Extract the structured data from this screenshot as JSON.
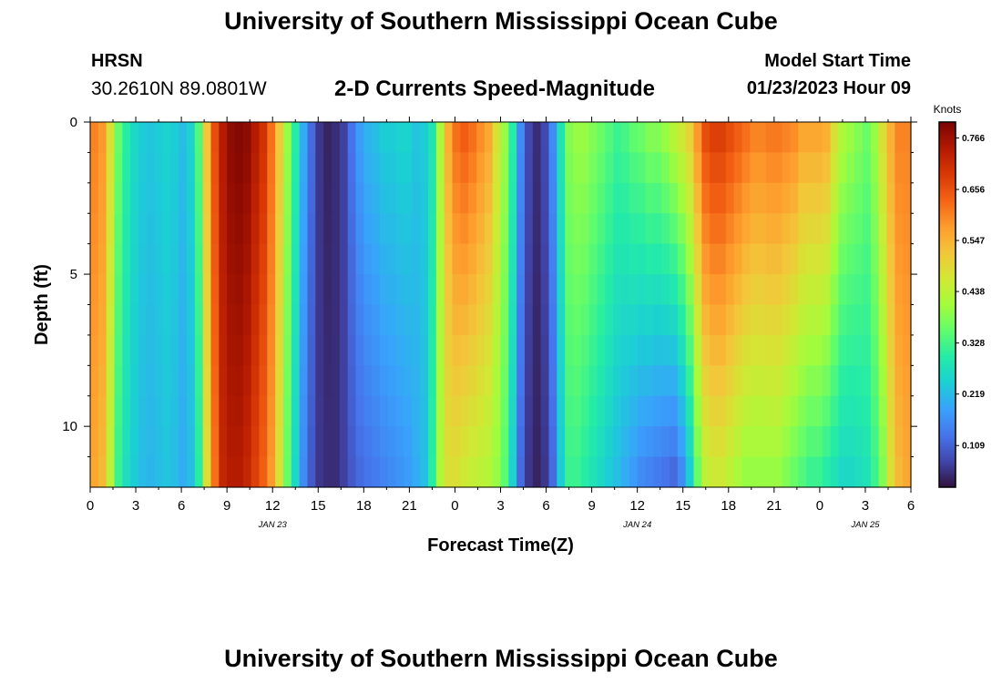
{
  "header": {
    "title": "University of Southern Mississippi Ocean Cube",
    "station": "HRSN",
    "coords": "30.2610N  89.0801W",
    "plot_title": "2-D Currents Speed-Magnitude",
    "start_label": "Model Start Time",
    "start_value": "01/23/2023 Hour 09"
  },
  "footer": {
    "title": "University of Southern Mississippi Ocean Cube"
  },
  "chart_data": {
    "type": "heatmap",
    "title": "2-D Currents Speed-Magnitude",
    "xlabel": "Forecast Time(Z)",
    "ylabel": "Depth (ft)",
    "x_start_hour": 0,
    "x_end_hour": 54,
    "x_ticks": [
      "0",
      "3",
      "6",
      "9",
      "12",
      "15",
      "18",
      "21",
      "0",
      "3",
      "6",
      "9",
      "12",
      "15",
      "18",
      "21",
      "0",
      "3",
      "6"
    ],
    "date_labels": [
      {
        "text": "JAN 23",
        "hour": 12
      },
      {
        "text": "JAN 24",
        "hour": 36
      },
      {
        "text": "JAN 25",
        "hour": 51
      }
    ],
    "y_ticks": [
      "0",
      "5",
      "10"
    ],
    "ylim": [
      0,
      12
    ],
    "colorbar_title": "Knots",
    "colorbar_ticks": [
      "0.766",
      "0.656",
      "0.547",
      "0.438",
      "0.328",
      "0.219",
      "0.109"
    ],
    "vmin": 0.02,
    "vmax": 0.8,
    "colormap": [
      "#30123b",
      "#4145ab",
      "#4675ed",
      "#39a2fc",
      "#1bcfd4",
      "#24eca6",
      "#61fc6c",
      "#a4fc3b",
      "#d1e834",
      "#f3c63a",
      "#fe9b2d",
      "#f36315",
      "#d93806",
      "#b11901",
      "#7a0403"
    ],
    "surface_profile": [
      0.6,
      0.58,
      0.48,
      0.36,
      0.3,
      0.26,
      0.24,
      0.23,
      0.24,
      0.25,
      0.24,
      0.22,
      0.25,
      0.34,
      0.52,
      0.66,
      0.74,
      0.78,
      0.79,
      0.78,
      0.74,
      0.7,
      0.62,
      0.52,
      0.4,
      0.3,
      0.2,
      0.12,
      0.06,
      0.04,
      0.05,
      0.07,
      0.13,
      0.18,
      0.21,
      0.22,
      0.24,
      0.24,
      0.25,
      0.25,
      0.23,
      0.24,
      0.28,
      0.42,
      0.55,
      0.62,
      0.64,
      0.62,
      0.59,
      0.56,
      0.48,
      0.4,
      0.3,
      0.16,
      0.08,
      0.05,
      0.08,
      0.16,
      0.28,
      0.38,
      0.4,
      0.4,
      0.38,
      0.36,
      0.34,
      0.32,
      0.33,
      0.35,
      0.36,
      0.38,
      0.38,
      0.4,
      0.43,
      0.46,
      0.5,
      0.58,
      0.66,
      0.68,
      0.68,
      0.66,
      0.64,
      0.62,
      0.6,
      0.6,
      0.61,
      0.61,
      0.6,
      0.59,
      0.56,
      0.56,
      0.56,
      0.55,
      0.48,
      0.42,
      0.4,
      0.38,
      0.36,
      0.4,
      0.48,
      0.55,
      0.6,
      0.6
    ],
    "depth_profile": [
      0.56,
      0.54,
      0.44,
      0.32,
      0.27,
      0.24,
      0.22,
      0.21,
      0.22,
      0.23,
      0.22,
      0.2,
      0.22,
      0.3,
      0.48,
      0.62,
      0.72,
      0.74,
      0.74,
      0.72,
      0.68,
      0.64,
      0.58,
      0.48,
      0.36,
      0.26,
      0.16,
      0.1,
      0.06,
      0.05,
      0.05,
      0.07,
      0.1,
      0.12,
      0.13,
      0.14,
      0.15,
      0.16,
      0.17,
      0.18,
      0.2,
      0.22,
      0.3,
      0.42,
      0.48,
      0.48,
      0.46,
      0.45,
      0.44,
      0.43,
      0.4,
      0.35,
      0.25,
      0.12,
      0.06,
      0.04,
      0.06,
      0.12,
      0.24,
      0.32,
      0.32,
      0.3,
      0.28,
      0.26,
      0.24,
      0.22,
      0.2,
      0.18,
      0.16,
      0.15,
      0.14,
      0.13,
      0.12,
      0.16,
      0.24,
      0.36,
      0.44,
      0.46,
      0.46,
      0.44,
      0.42,
      0.4,
      0.4,
      0.4,
      0.4,
      0.4,
      0.38,
      0.36,
      0.34,
      0.32,
      0.32,
      0.3,
      0.28,
      0.26,
      0.26,
      0.27,
      0.28,
      0.32,
      0.38,
      0.48,
      0.54,
      0.56
    ]
  }
}
